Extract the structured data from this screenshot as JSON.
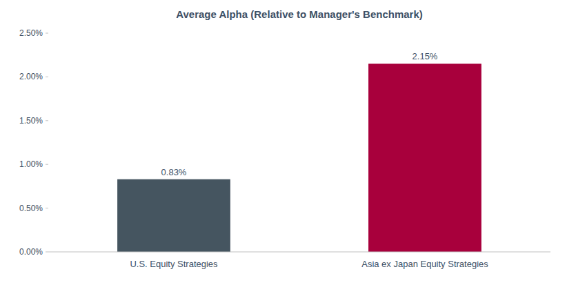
{
  "chart_data": {
    "type": "bar",
    "title": "Average Alpha (Relative to Manager's Benchmark)",
    "categories": [
      "U.S. Equity Strategies",
      "Asia ex Japan Equity Strategies"
    ],
    "values": [
      0.0083,
      0.0215
    ],
    "value_labels": [
      "0.83%",
      "2.15%"
    ],
    "colors": [
      "#455560",
      "#a8003c"
    ],
    "ylim": [
      0,
      0.025
    ],
    "yticks": [
      {
        "value": 0.0,
        "label": "0.00%"
      },
      {
        "value": 0.005,
        "label": "0.50%"
      },
      {
        "value": 0.01,
        "label": "1.00%"
      },
      {
        "value": 0.015,
        "label": "1.50%"
      },
      {
        "value": 0.02,
        "label": "2.00%"
      },
      {
        "value": 0.025,
        "label": "2.50%"
      }
    ],
    "grid": false,
    "data_labels": true
  }
}
